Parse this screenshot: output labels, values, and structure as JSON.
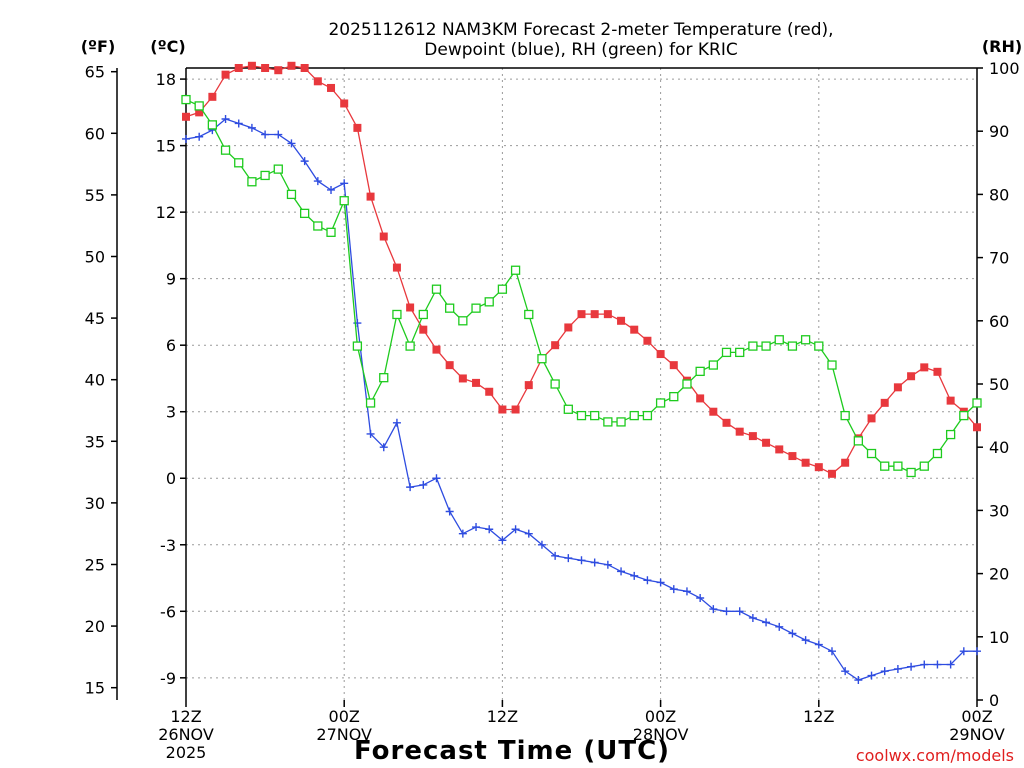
{
  "chart_data": {
    "type": "line",
    "title_lines": [
      "2025112612 NAM3KM Forecast 2-meter Temperature (red),",
      "Dewpoint (blue), RH (green) for KRIC"
    ],
    "xlabel": "Forecast Time (UTC)",
    "credit": "coolwx.com/models",
    "unit_labels": {
      "fahrenheit": "(ºF)",
      "celsius": "(ºC)",
      "rh": "(RH)"
    },
    "x_range_hours": [
      0,
      60
    ],
    "x_ticks": [
      {
        "hour": 0,
        "lines": [
          "12Z",
          "26NOV",
          "2025"
        ]
      },
      {
        "hour": 12,
        "lines": [
          "00Z",
          "27NOV"
        ]
      },
      {
        "hour": 24,
        "lines": [
          "12Z"
        ]
      },
      {
        "hour": 36,
        "lines": [
          "00Z",
          "28NOV"
        ]
      },
      {
        "hour": 48,
        "lines": [
          "12Z"
        ]
      },
      {
        "hour": 60,
        "lines": [
          "00Z",
          "29NOV"
        ]
      }
    ],
    "celsius_axis": {
      "min": -10.0,
      "max": 18.5,
      "ticks": [
        18,
        15,
        12,
        9,
        6,
        3,
        0,
        -3,
        -6,
        -9
      ]
    },
    "fahrenheit_axis": {
      "ticks": [
        65,
        60,
        55,
        50,
        45,
        40,
        35,
        30,
        25,
        20,
        15
      ]
    },
    "rh_axis": {
      "min": 0,
      "max": 100,
      "ticks": [
        100,
        90,
        80,
        70,
        60,
        50,
        40,
        30,
        20,
        10,
        0
      ]
    },
    "series": [
      {
        "name": "2-meter Temperature",
        "units": "C",
        "color": "#e8383d",
        "marker": "filled-square",
        "x": [
          0,
          1,
          2,
          3,
          4,
          5,
          6,
          7,
          8,
          9,
          10,
          11,
          12,
          13,
          14,
          15,
          16,
          17,
          18,
          19,
          20,
          21,
          22,
          23,
          24,
          25,
          26,
          27,
          28,
          29,
          30,
          31,
          32,
          33,
          34,
          35,
          36,
          37,
          38,
          39,
          40,
          41,
          42,
          43,
          44,
          45,
          46,
          47,
          48,
          49,
          50,
          51,
          52,
          53,
          54,
          55,
          56,
          57,
          58,
          59,
          60
        ],
        "values": [
          16.3,
          16.5,
          17.2,
          18.2,
          18.5,
          18.6,
          18.5,
          18.4,
          18.6,
          18.5,
          17.9,
          17.6,
          16.9,
          15.8,
          12.7,
          10.9,
          9.5,
          7.7,
          6.7,
          5.8,
          5.1,
          4.5,
          4.3,
          3.9,
          3.1,
          3.1,
          4.2,
          5.4,
          6.0,
          6.8,
          7.4,
          7.4,
          7.4,
          7.1,
          6.7,
          6.2,
          5.6,
          5.1,
          4.4,
          3.6,
          3.0,
          2.5,
          2.1,
          1.9,
          1.6,
          1.3,
          1.0,
          0.7,
          0.5,
          0.2,
          0.7,
          1.8,
          2.7,
          3.4,
          4.1,
          4.6,
          5.0,
          4.8,
          3.5,
          3.0,
          2.3
        ]
      },
      {
        "name": "Dewpoint",
        "units": "C",
        "color": "#2e4ce0",
        "marker": "plus",
        "x": [
          0,
          1,
          2,
          3,
          4,
          5,
          6,
          7,
          8,
          9,
          10,
          11,
          12,
          13,
          14,
          15,
          16,
          17,
          18,
          19,
          20,
          21,
          22,
          23,
          24,
          25,
          26,
          27,
          28,
          29,
          30,
          31,
          32,
          33,
          34,
          35,
          36,
          37,
          38,
          39,
          40,
          41,
          42,
          43,
          44,
          45,
          46,
          47,
          48,
          49,
          50,
          51,
          52,
          53,
          54,
          55,
          56,
          57,
          58,
          59,
          60
        ],
        "values": [
          15.3,
          15.4,
          15.7,
          16.2,
          16.0,
          15.8,
          15.5,
          15.5,
          15.1,
          14.3,
          13.4,
          13.0,
          13.3,
          7.0,
          2.0,
          1.4,
          2.5,
          -0.4,
          -0.3,
          0.0,
          -1.5,
          -2.5,
          -2.2,
          -2.3,
          -2.8,
          -2.3,
          -2.5,
          -3.0,
          -3.5,
          -3.6,
          -3.7,
          -3.8,
          -3.9,
          -4.2,
          -4.4,
          -4.6,
          -4.7,
          -5.0,
          -5.1,
          -5.4,
          -5.9,
          -6.0,
          -6.0,
          -6.3,
          -6.5,
          -6.7,
          -7.0,
          -7.3,
          -7.5,
          -7.8,
          -8.7,
          -9.1,
          -8.9,
          -8.7,
          -8.6,
          -8.5,
          -8.4,
          -8.4,
          -8.4,
          -7.8,
          -7.8
        ]
      },
      {
        "name": "RH",
        "units": "%",
        "color": "#1ecb1e",
        "marker": "open-square",
        "x": [
          0,
          1,
          2,
          3,
          4,
          5,
          6,
          7,
          8,
          9,
          10,
          11,
          12,
          13,
          14,
          15,
          16,
          17,
          18,
          19,
          20,
          21,
          22,
          23,
          24,
          25,
          26,
          27,
          28,
          29,
          30,
          31,
          32,
          33,
          34,
          35,
          36,
          37,
          38,
          39,
          40,
          41,
          42,
          43,
          44,
          45,
          46,
          47,
          48,
          49,
          50,
          51,
          52,
          53,
          54,
          55,
          56,
          57,
          58,
          59,
          60
        ],
        "values": [
          95,
          94,
          91,
          87,
          85,
          82,
          83,
          84,
          80,
          77,
          75,
          74,
          79,
          56,
          47,
          51,
          61,
          56,
          61,
          65,
          62,
          60,
          62,
          63,
          65,
          68,
          61,
          54,
          50,
          46,
          45,
          45,
          44,
          44,
          45,
          45,
          47,
          48,
          50,
          52,
          53,
          55,
          55,
          56,
          56,
          57,
          56,
          57,
          56,
          53,
          45,
          41,
          39,
          37,
          37,
          36,
          37,
          39,
          42,
          45,
          47
        ]
      }
    ]
  }
}
